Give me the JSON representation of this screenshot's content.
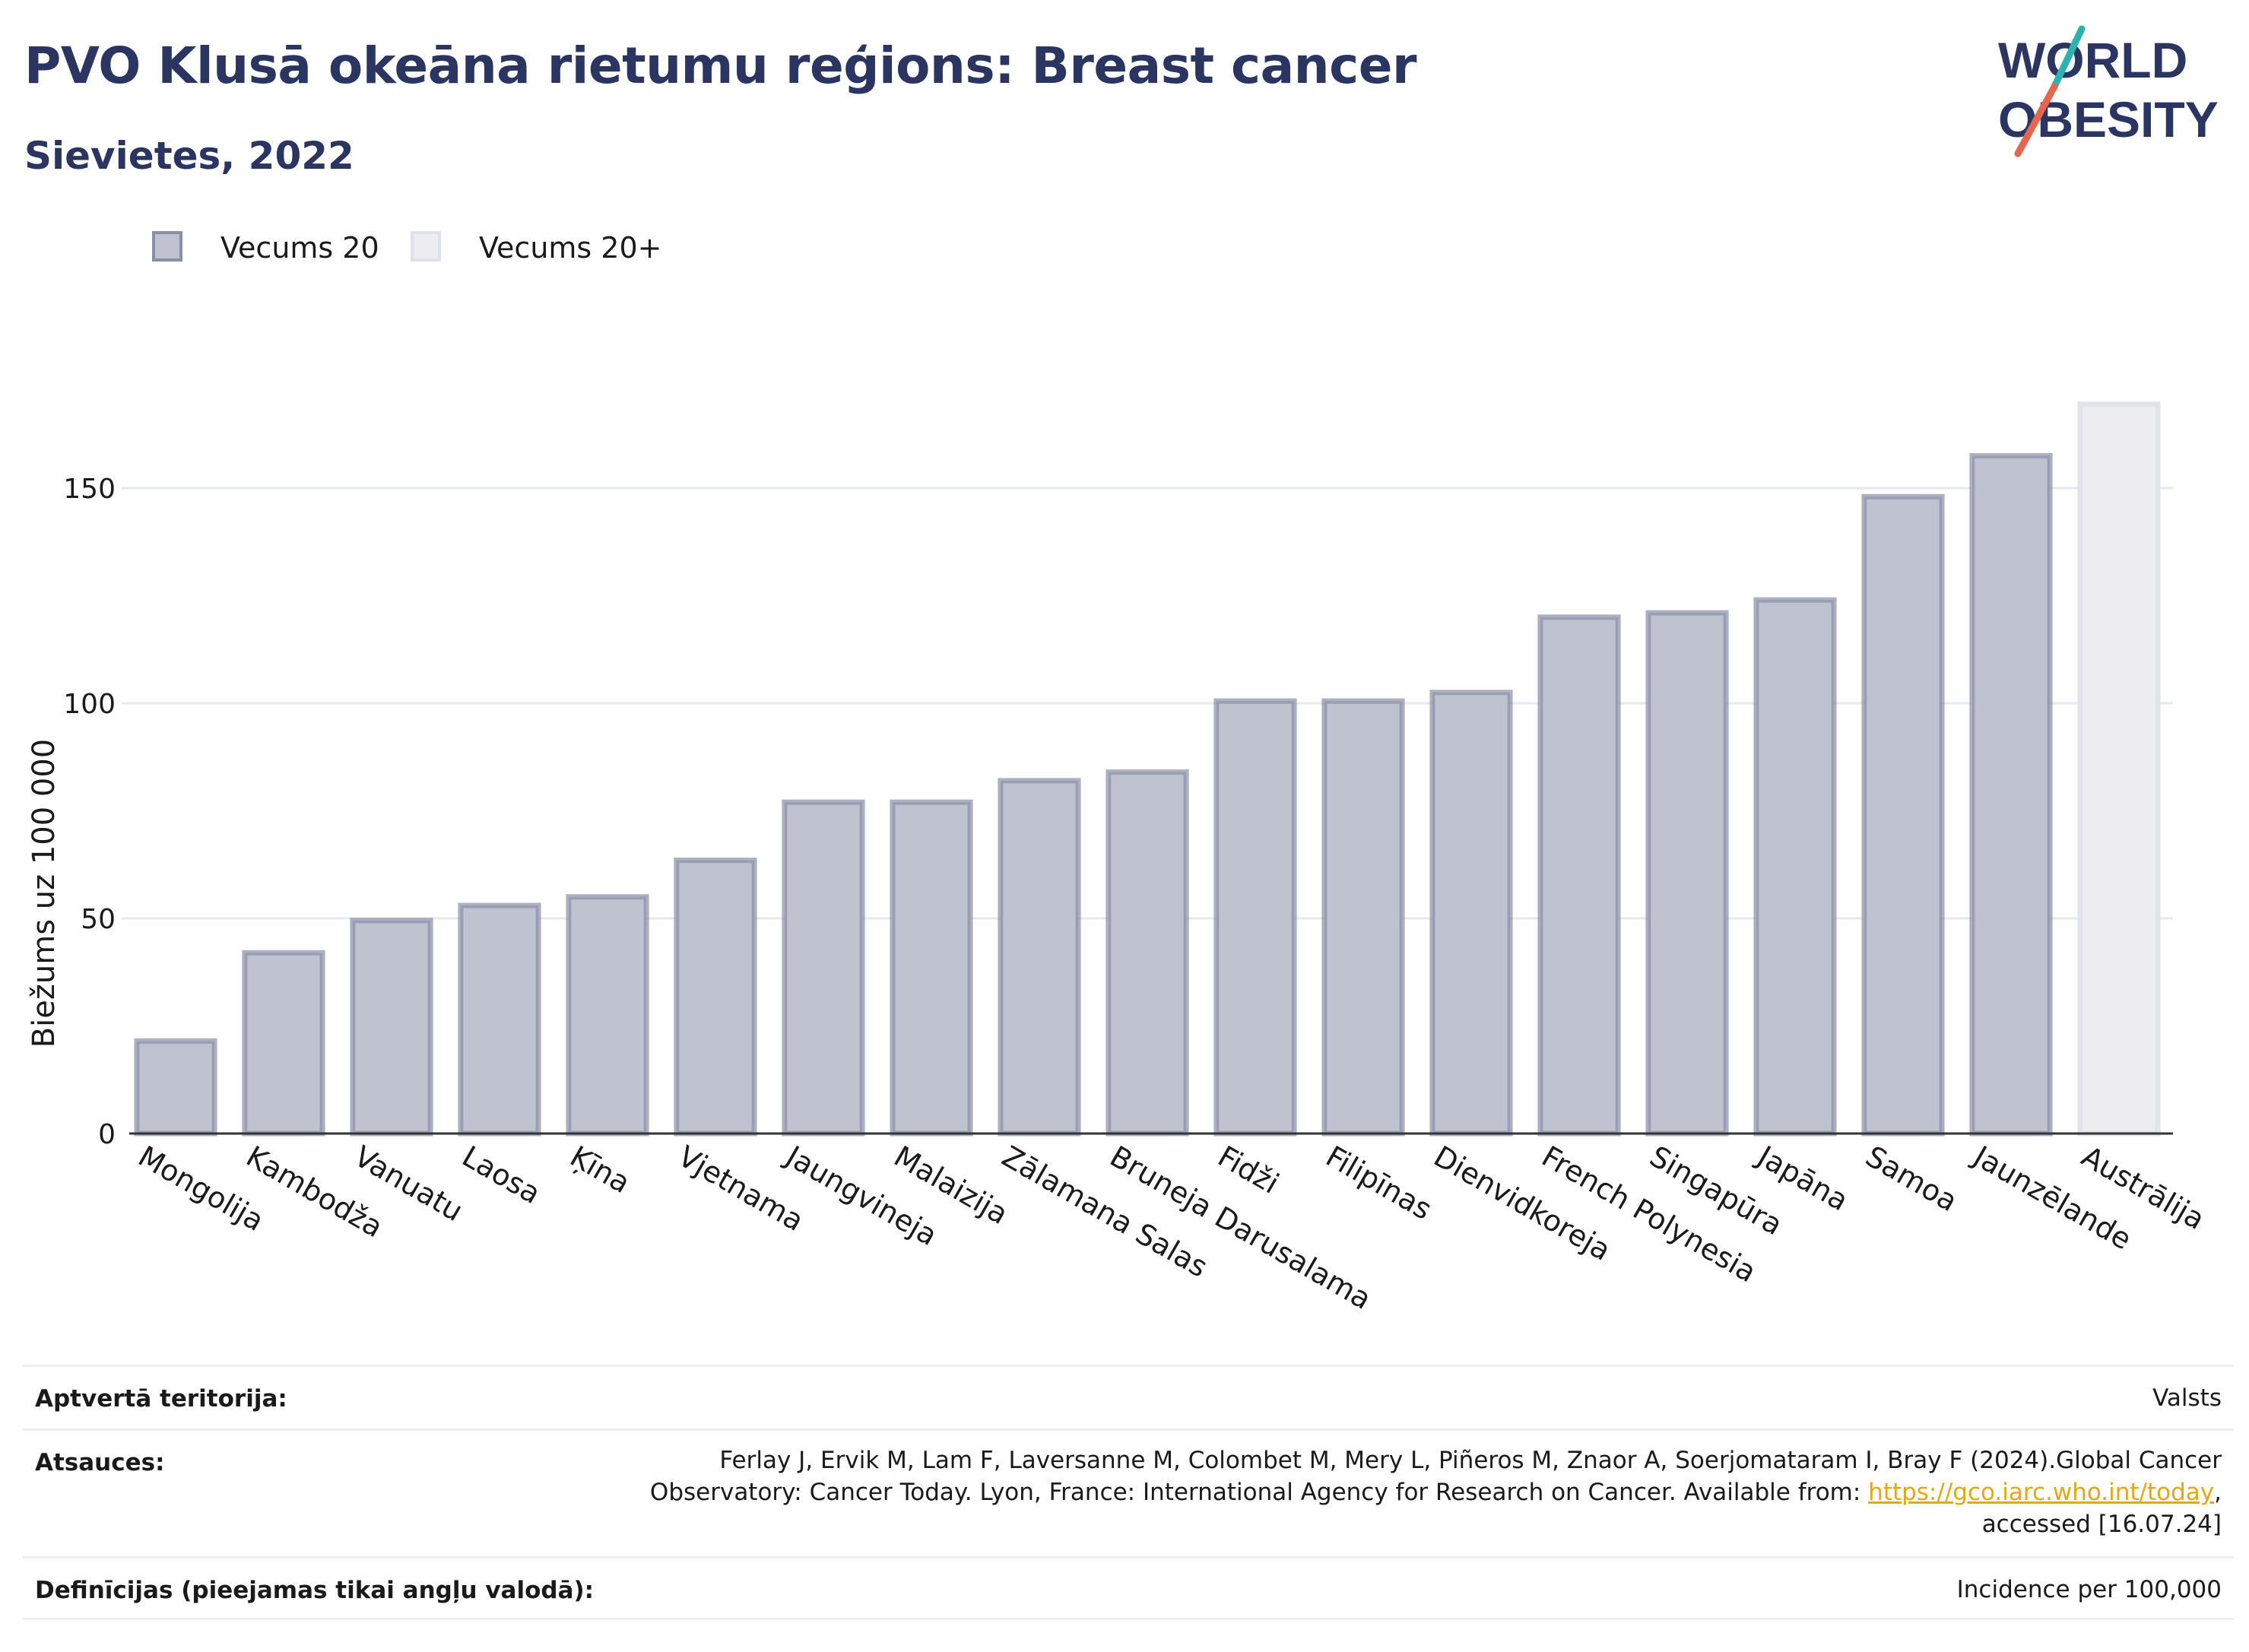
{
  "header": {
    "title": "PVO Klusā okeāna rietumu reģions: Breast cancer",
    "subtitle": "Sievietes, 2022"
  },
  "logo": {
    "line1": "WORLD",
    "line2": "OBESITY"
  },
  "legend": [
    {
      "label": "Vecums 20",
      "color": "#bfc2cf",
      "border": "#8a8ea6"
    },
    {
      "label": "Vecums 20+",
      "color": "#ededf1",
      "border": "#e0e1e8"
    }
  ],
  "chart_data": {
    "type": "bar",
    "ylabel": "Biežums uz 100 000",
    "ylim": [
      0,
      170
    ],
    "yticks": [
      0,
      50,
      100,
      150
    ],
    "grid": true,
    "legend_position": "top-left",
    "categories": [
      "Mongolija",
      "Kambodža",
      "Vanuatu",
      "Laosa",
      "Ķīna",
      "Vjetnama",
      "Jaungvineja",
      "Malaizija",
      "Zālamana Salas",
      "Bruneja Darusalama",
      "Fidži",
      "Filipīnas",
      "Dienvidkoreja",
      "French Polynesia",
      "Singapūra",
      "Japāna",
      "Samoa",
      "Jaunzēlande",
      "Austrālija"
    ],
    "values": [
      21.5,
      42,
      49.5,
      53,
      55,
      63.5,
      77,
      77,
      82,
      84,
      100.5,
      100.5,
      102.5,
      120,
      121,
      124,
      148,
      157.5,
      169.5
    ],
    "series_index": [
      0,
      0,
      0,
      0,
      0,
      0,
      0,
      0,
      0,
      0,
      0,
      0,
      0,
      0,
      0,
      0,
      0,
      0,
      1
    ]
  },
  "table": [
    {
      "key": "Aptvertā teritorija:",
      "value": "Valsts"
    },
    {
      "key": "Atsauces:",
      "value_pre": "Ferlay J, Ervik M, Lam F, Laversanne M, Colombet M, Mery L, Piñeros M, Znaor A, Soerjomataram I, Bray F (2024).Global Cancer Observatory: Cancer Today. Lyon, France: International Agency for Research on Cancer. Available from: ",
      "link": "https://gco.iarc.who.int/today",
      "value_post": ", accessed [16.07.24]"
    },
    {
      "key": "Definīcijas (pieejamas tikai angļu valodā):",
      "value": "Incidence per 100,000"
    }
  ]
}
